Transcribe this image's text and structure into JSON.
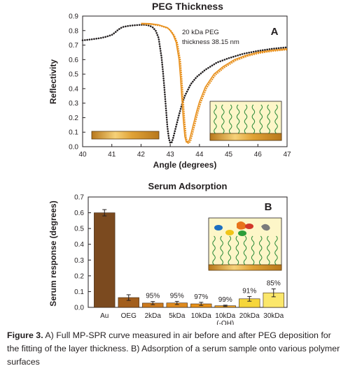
{
  "chart_data": [
    {
      "type": "line",
      "title": "PEG Thickness",
      "panel_label": "A",
      "xlabel": "Angle (degrees)",
      "ylabel": "Reflectivity",
      "xlim": [
        40,
        47
      ],
      "ylim": [
        0.0,
        0.9
      ],
      "x_ticks": [
        "40",
        "41",
        "42",
        "43",
        "44",
        "45",
        "46",
        "47"
      ],
      "y_ticks": [
        "0.0",
        "0.1",
        "0.2",
        "0.3",
        "0.4",
        "0.5",
        "0.6",
        "0.7",
        "0.8",
        "0.9"
      ],
      "grid": false,
      "annotation": [
        "20 kDa PEG",
        "thickness 38.15 nm"
      ],
      "series": [
        {
          "color": "#231f20",
          "style": "dotted",
          "points": [
            [
              40.0,
              0.733
            ],
            [
              40.2,
              0.737
            ],
            [
              40.4,
              0.742
            ],
            [
              40.6,
              0.748
            ],
            [
              40.8,
              0.757
            ],
            [
              41.0,
              0.77
            ],
            [
              41.1,
              0.785
            ],
            [
              41.2,
              0.803
            ],
            [
              41.3,
              0.817
            ],
            [
              41.4,
              0.826
            ],
            [
              41.6,
              0.833
            ],
            [
              41.8,
              0.837
            ],
            [
              42.0,
              0.84
            ],
            [
              42.1,
              0.84
            ],
            [
              42.2,
              0.838
            ],
            [
              42.3,
              0.833
            ],
            [
              42.4,
              0.822
            ],
            [
              42.5,
              0.8
            ],
            [
              42.6,
              0.75
            ],
            [
              42.7,
              0.62
            ],
            [
              42.75,
              0.52
            ],
            [
              42.8,
              0.4
            ],
            [
              42.85,
              0.27
            ],
            [
              42.9,
              0.14
            ],
            [
              42.95,
              0.06
            ],
            [
              43.0,
              0.025
            ],
            [
              43.05,
              0.03
            ],
            [
              43.1,
              0.06
            ],
            [
              43.2,
              0.14
            ],
            [
              43.3,
              0.22
            ],
            [
              43.4,
              0.29
            ],
            [
              43.5,
              0.35
            ],
            [
              43.7,
              0.43
            ],
            [
              43.9,
              0.48
            ],
            [
              44.2,
              0.53
            ],
            [
              44.6,
              0.58
            ],
            [
              45.0,
              0.61
            ],
            [
              45.5,
              0.64
            ],
            [
              46.0,
              0.66
            ],
            [
              46.5,
              0.675
            ],
            [
              47.0,
              0.685
            ]
          ]
        },
        {
          "color": "#e8901c",
          "style": "solid+dotted",
          "points": [
            [
              42.0,
              0.85
            ],
            [
              42.3,
              0.848
            ],
            [
              42.6,
              0.84
            ],
            [
              42.9,
              0.82
            ],
            [
              43.0,
              0.8
            ],
            [
              43.1,
              0.77
            ],
            [
              43.2,
              0.72
            ],
            [
              43.3,
              0.6
            ],
            [
              43.35,
              0.48
            ],
            [
              43.4,
              0.33
            ],
            [
              43.45,
              0.18
            ],
            [
              43.5,
              0.07
            ],
            [
              43.55,
              0.032
            ],
            [
              43.6,
              0.03
            ],
            [
              43.65,
              0.045
            ],
            [
              43.7,
              0.08
            ],
            [
              43.8,
              0.16
            ],
            [
              43.9,
              0.24
            ],
            [
              44.0,
              0.31
            ],
            [
              44.2,
              0.41
            ],
            [
              44.5,
              0.5
            ],
            [
              44.8,
              0.55
            ],
            [
              45.2,
              0.6
            ],
            [
              45.6,
              0.63
            ],
            [
              46.0,
              0.65
            ],
            [
              46.5,
              0.665
            ],
            [
              47.0,
              0.675
            ]
          ]
        }
      ]
    },
    {
      "type": "bar",
      "title": "Serum Adsorption",
      "panel_label": "B",
      "xlabel": "",
      "ylabel": "Serum response (degrees)",
      "ylim": [
        0.0,
        0.7
      ],
      "y_ticks": [
        "0.0",
        "0.1",
        "0.2",
        "0.3",
        "0.4",
        "0.5",
        "0.6",
        "0.7"
      ],
      "grid": false,
      "categories": [
        "Au",
        "OEG",
        "2kDa",
        "5kDa",
        "10kDa",
        "10kDa\n(-OH)",
        "20kDa",
        "30kDa"
      ],
      "values": [
        0.6,
        0.062,
        0.027,
        0.028,
        0.022,
        0.01,
        0.054,
        0.092
      ],
      "errors": [
        0.02,
        0.018,
        0.01,
        0.01,
        0.01,
        0.004,
        0.015,
        0.025
      ],
      "bar_labels": [
        "",
        "",
        "95%",
        "95%",
        "97%",
        "99%",
        "91%",
        "85%"
      ],
      "colors": [
        "#7b4a1f",
        "#a25e1d",
        "#cc7a1e",
        "#de8a1e",
        "#e8921a",
        "#eea223",
        "#f6d63a",
        "#fbe76b"
      ]
    }
  ],
  "caption": {
    "bold": "Figure 3.",
    "text": " A) Full MP-SPR curve measured in air before and after PEG deposition for the fitting of the layer thickness. B) Adsorption of a serum sample onto various polymer surfaces"
  }
}
